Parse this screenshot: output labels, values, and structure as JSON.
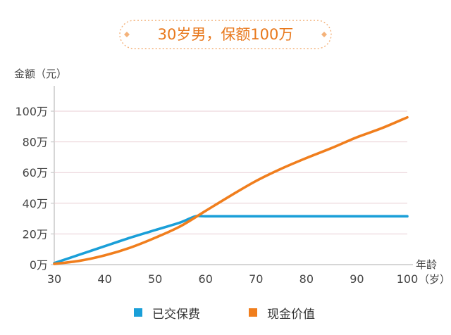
{
  "title": "30岁男，保额100万",
  "chart_data": {
    "type": "line",
    "ylabel": "金额（元）",
    "xlabel": "年龄（岁）",
    "xlabel_lines": [
      "年龄",
      "（岁）"
    ],
    "xlim": [
      30,
      100
    ],
    "ylim": [
      0,
      100
    ],
    "x_ticks": [
      30,
      40,
      50,
      60,
      70,
      80,
      90,
      100
    ],
    "y_ticks": [
      0,
      20,
      40,
      60,
      80,
      100
    ],
    "y_tick_labels": [
      "0万",
      "20万",
      "40万",
      "60万",
      "80万",
      "100万"
    ],
    "grid": true,
    "legend_position": "bottom",
    "series": [
      {
        "name": "已交保费",
        "color": "#1a9fd8",
        "x": [
          30,
          35,
          40,
          45,
          50,
          55,
          58,
          60,
          70,
          80,
          90,
          100
        ],
        "y": [
          1,
          6.5,
          12,
          17.5,
          22.5,
          27.5,
          31.5,
          31.5,
          31.5,
          31.5,
          31.5,
          31.5
        ]
      },
      {
        "name": "现金价值",
        "color": "#f07e1d",
        "x": [
          30,
          35,
          40,
          45,
          50,
          55,
          60,
          65,
          70,
          75,
          80,
          85,
          90,
          95,
          100
        ],
        "y": [
          0.5,
          2.5,
          6,
          11,
          17.5,
          25,
          35,
          45,
          54.5,
          62.5,
          69.5,
          76,
          83,
          89,
          96
        ]
      }
    ]
  }
}
